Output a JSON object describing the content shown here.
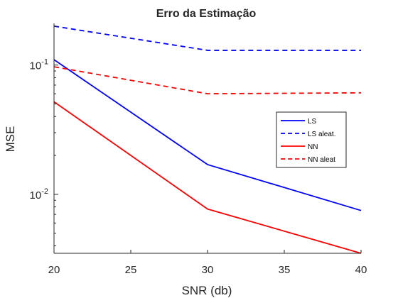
{
  "chart_data": {
    "type": "line",
    "title": "Erro da Estimação",
    "xlabel": "SNR (db)",
    "ylabel": "MSE",
    "xscale": "linear",
    "yscale": "log",
    "xlim": [
      20,
      40
    ],
    "ylim": [
      0.0035,
      0.21
    ],
    "x_ticks": [
      20,
      25,
      30,
      35,
      40
    ],
    "y_ticks": [
      {
        "value": 0.1,
        "base": "10",
        "exp": "-1"
      },
      {
        "value": 0.01,
        "base": "10",
        "exp": "-2"
      }
    ],
    "grid": false,
    "legend_position": "right",
    "series": [
      {
        "name": "LS",
        "color": "#0000FF",
        "style": "solid",
        "x": [
          20,
          30,
          40
        ],
        "y": [
          0.11,
          0.017,
          0.0075
        ]
      },
      {
        "name": "LS aleat.",
        "color": "#0000FF",
        "style": "dashed",
        "x": [
          20,
          30,
          40
        ],
        "y": [
          0.2,
          0.13,
          0.13
        ]
      },
      {
        "name": "NN",
        "color": "#FF0000",
        "style": "solid",
        "x": [
          20,
          30,
          40
        ],
        "y": [
          0.052,
          0.0077,
          0.0035
        ]
      },
      {
        "name": "NN aleat",
        "color": "#FF0000",
        "style": "dashed",
        "x": [
          20,
          30,
          40
        ],
        "y": [
          0.097,
          0.06,
          0.061
        ]
      }
    ]
  }
}
